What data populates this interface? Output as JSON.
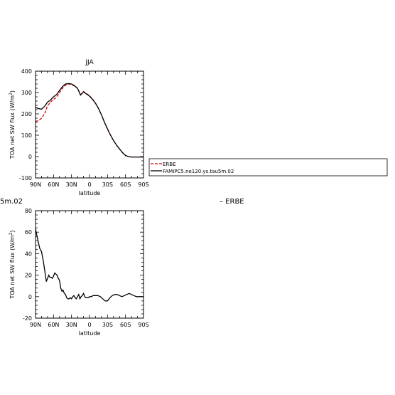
{
  "chart_data": [
    {
      "type": "line",
      "title": "JJA",
      "xlabel": "latitude",
      "ylabel": "TOA net SW flux (W/m²)",
      "ylabel_parts": {
        "main": "TOA net SW flux (W/m",
        "sup": "2",
        "end": ")"
      },
      "xlim": [
        90,
        -90
      ],
      "ylim": [
        -100,
        400
      ],
      "xticks": [
        90,
        60,
        30,
        0,
        -30,
        -60,
        -90
      ],
      "xtick_labels": [
        "90N",
        "60N",
        "30N",
        "0",
        "30S",
        "60S",
        "90S"
      ],
      "yticks": [
        -100,
        0,
        100,
        200,
        300,
        400
      ],
      "ytick_labels": [
        "-100",
        "0",
        "100",
        "200",
        "300",
        "400"
      ],
      "legend_position": "right, outside plot",
      "series": [
        {
          "name": "ERBE",
          "color": "#cc0000",
          "dashed": true,
          "x": [
            90,
            85,
            80,
            75,
            70,
            65,
            60,
            55,
            50,
            45,
            40,
            35,
            30,
            25,
            20,
            15,
            10,
            5,
            0,
            -5,
            -10,
            -15,
            -20,
            -25,
            -30,
            -35,
            -40,
            -45,
            -50,
            -55,
            -60,
            -65,
            -70,
            -75,
            -80,
            -85,
            -90
          ],
          "y": [
            165,
            168,
            180,
            200,
            238,
            255,
            268,
            278,
            300,
            320,
            335,
            340,
            338,
            330,
            320,
            290,
            305,
            295,
            285,
            270,
            250,
            225,
            195,
            160,
            128,
            100,
            75,
            53,
            35,
            18,
            5,
            0,
            -2,
            -2,
            -2,
            -2,
            -2
          ]
        },
        {
          "name": "FAMIPC5.ne120.ys.tau5m.02",
          "color": "#000000",
          "dashed": false,
          "x": [
            90,
            85,
            80,
            75,
            70,
            65,
            60,
            55,
            50,
            45,
            40,
            35,
            30,
            25,
            20,
            15,
            10,
            5,
            0,
            -5,
            -10,
            -15,
            -20,
            -25,
            -30,
            -35,
            -40,
            -45,
            -50,
            -55,
            -60,
            -65,
            -70,
            -75,
            -80,
            -85,
            -90
          ],
          "y": [
            230,
            225,
            222,
            235,
            255,
            265,
            280,
            290,
            310,
            328,
            340,
            342,
            340,
            332,
            320,
            288,
            303,
            293,
            283,
            268,
            250,
            225,
            195,
            160,
            130,
            100,
            75,
            54,
            36,
            19,
            5,
            0,
            -2,
            -2,
            -2,
            -2,
            -2
          ]
        }
      ]
    },
    {
      "type": "line",
      "title": "",
      "title_fragment": "5m.02",
      "title_right": "– ERBE",
      "xlabel": "latitude",
      "ylabel": "TOA net SW flux (W/m²)",
      "ylabel_parts": {
        "main": "TOA net SW flux (W/m",
        "sup": "2",
        "end": ")"
      },
      "xlim": [
        90,
        -90
      ],
      "ylim": [
        -20,
        80
      ],
      "xticks": [
        90,
        60,
        30,
        0,
        -30,
        -60,
        -90
      ],
      "xtick_labels": [
        "90N",
        "60N",
        "30N",
        "0",
        "30S",
        "60S",
        "90S"
      ],
      "yticks": [
        -20,
        0,
        20,
        40,
        60,
        80
      ],
      "ytick_labels": [
        "-20",
        "0",
        "20",
        "40",
        "60",
        "80"
      ],
      "series": [
        {
          "color": "#000000",
          "dashed": false,
          "x": [
            90,
            87,
            83,
            80,
            77,
            74,
            72,
            70,
            68,
            66,
            64,
            62,
            60,
            58,
            56,
            54,
            52,
            50,
            48,
            46,
            44,
            42,
            40,
            38,
            36,
            34,
            32,
            30,
            28,
            26,
            24,
            22,
            20,
            18,
            16,
            14,
            12,
            10,
            8,
            6,
            4,
            2,
            0,
            -3,
            -6,
            -10,
            -14,
            -18,
            -22,
            -26,
            -30,
            -34,
            -38,
            -42,
            -46,
            -50,
            -54,
            -58,
            -62,
            -66,
            -70,
            -74,
            -78,
            -82,
            -86,
            -90
          ],
          "y": [
            63,
            55,
            45,
            42,
            33,
            22,
            14,
            17,
            20,
            18,
            18,
            17,
            19,
            22,
            21,
            20,
            17,
            15,
            8,
            5,
            6,
            3,
            2,
            -1,
            -2,
            -2,
            -1,
            -2,
            0,
            1,
            -1,
            -2,
            0,
            2,
            -2,
            0,
            1,
            3,
            0,
            -1,
            -1,
            -1,
            0,
            0,
            1,
            1,
            1,
            0,
            -2,
            -4,
            -4,
            -1,
            1,
            2,
            2,
            1,
            0,
            1,
            2,
            3,
            2,
            1,
            0,
            0,
            0,
            0
          ]
        }
      ]
    }
  ]
}
